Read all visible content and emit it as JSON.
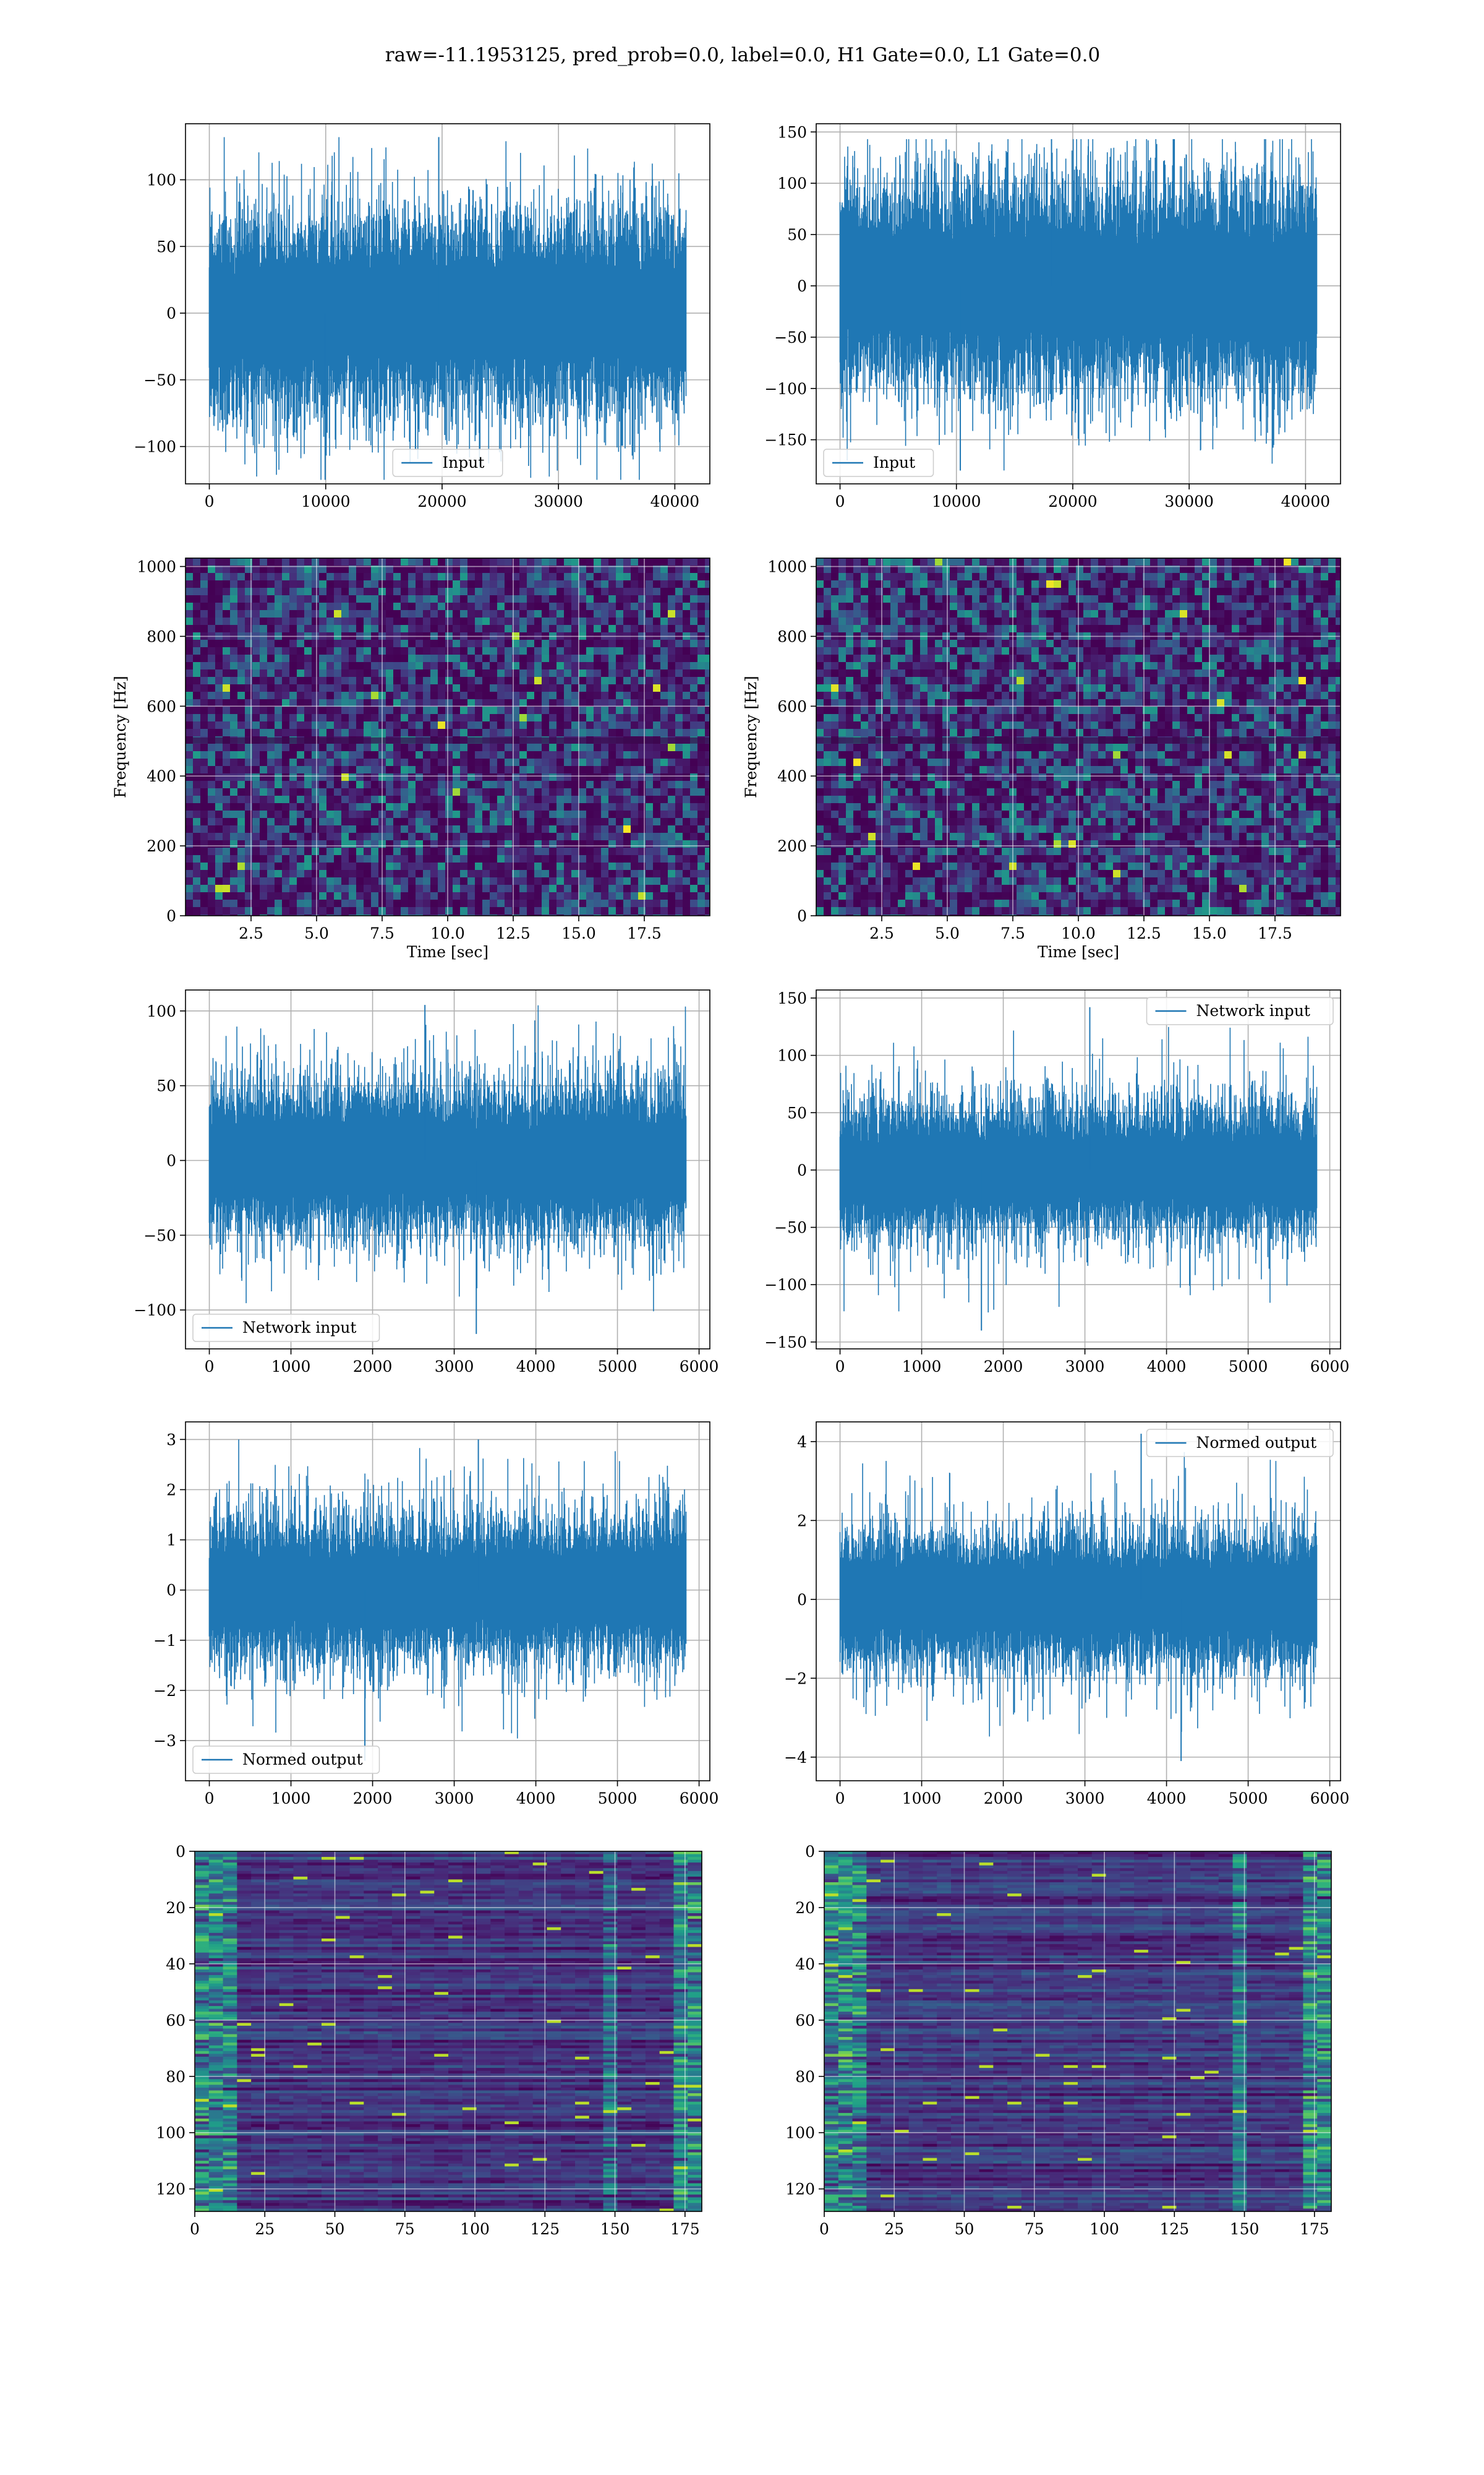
{
  "figure": {
    "title": "raw=-11.1953125, pred_prob=0.0, label=0.0, H1 Gate=0.0, L1 Gate=0.0"
  },
  "chart_data": [
    {
      "id": "h1-input",
      "type": "line",
      "legend": "lower center",
      "series": [
        {
          "name": "Input",
          "color": "#1f77b4"
        }
      ],
      "x_range": [
        0,
        40960
      ],
      "xlim": [
        -2048,
        43008
      ],
      "ylim": [
        -128,
        142
      ],
      "xticks": [
        0,
        10000,
        20000,
        30000,
        40000
      ],
      "yticks": [
        -100,
        -50,
        0,
        50,
        100
      ],
      "envelope": {
        "core": 50,
        "peak_max": 132,
        "peak_min": -125
      },
      "grid": true
    },
    {
      "id": "l1-input",
      "type": "line",
      "legend": "lower left",
      "series": [
        {
          "name": "Input",
          "color": "#1f77b4"
        }
      ],
      "x_range": [
        0,
        40960
      ],
      "xlim": [
        -2048,
        43008
      ],
      "ylim": [
        -193,
        158
      ],
      "xticks": [
        0,
        10000,
        20000,
        30000,
        40000
      ],
      "yticks": [
        -150,
        -100,
        -50,
        0,
        50,
        100,
        150
      ],
      "envelope": {
        "core": 70,
        "peak_max": 143,
        "peak_min": -180
      },
      "grid": true
    },
    {
      "id": "h1-spectrogram",
      "type": "heatmap",
      "colormap": "viridis",
      "xlabel": "Time [sec]",
      "ylabel": "Frequency [Hz]",
      "xlim": [
        0,
        20
      ],
      "ylim": [
        0,
        1024
      ],
      "xticks": [
        2.5,
        5.0,
        7.5,
        10.0,
        12.5,
        15.0,
        17.5
      ],
      "yticks": [
        0,
        200,
        400,
        600,
        800,
        1000
      ],
      "grid": true
    },
    {
      "id": "l1-spectrogram",
      "type": "heatmap",
      "colormap": "viridis",
      "xlabel": "Time [sec]",
      "ylabel": "Frequency [Hz]",
      "xlim": [
        0,
        20
      ],
      "ylim": [
        0,
        1024
      ],
      "xticks": [
        2.5,
        5.0,
        7.5,
        10.0,
        12.5,
        15.0,
        17.5
      ],
      "yticks": [
        0,
        200,
        400,
        600,
        800,
        1000
      ],
      "grid": true
    },
    {
      "id": "h1-network-input",
      "type": "line",
      "legend": "lower left",
      "series": [
        {
          "name": "Network input",
          "color": "#1f77b4"
        }
      ],
      "x_range": [
        0,
        5840
      ],
      "xlim": [
        -292,
        6132
      ],
      "ylim": [
        -126,
        114
      ],
      "xticks": [
        0,
        1000,
        2000,
        3000,
        4000,
        5000,
        6000
      ],
      "yticks": [
        -100,
        -50,
        0,
        50,
        100
      ],
      "envelope": {
        "core": 35,
        "peak_max": 104,
        "peak_min": -116
      },
      "grid": true
    },
    {
      "id": "l1-network-input",
      "type": "line",
      "legend": "upper right",
      "series": [
        {
          "name": "Network input",
          "color": "#1f77b4"
        }
      ],
      "x_range": [
        0,
        5840
      ],
      "xlim": [
        -292,
        6132
      ],
      "ylim": [
        -156,
        157
      ],
      "xticks": [
        0,
        1000,
        2000,
        3000,
        4000,
        5000,
        6000
      ],
      "yticks": [
        -150,
        -100,
        -50,
        0,
        50,
        100,
        150
      ],
      "envelope": {
        "core": 40,
        "peak_max": 142,
        "peak_min": -140
      },
      "grid": true
    },
    {
      "id": "h1-normed-output",
      "type": "line",
      "legend": "lower left",
      "series": [
        {
          "name": "Normed output",
          "color": "#1f77b4"
        }
      ],
      "x_range": [
        0,
        5840
      ],
      "xlim": [
        -292,
        6132
      ],
      "ylim": [
        -3.8,
        3.35
      ],
      "xticks": [
        0,
        1000,
        2000,
        3000,
        4000,
        5000,
        6000
      ],
      "yticks": [
        -3,
        -2,
        -1,
        0,
        1,
        2,
        3
      ],
      "envelope": {
        "core": 1.0,
        "peak_max": 3.0,
        "peak_min": -3.4
      },
      "grid": true
    },
    {
      "id": "l1-normed-output",
      "type": "line",
      "legend": "upper right",
      "series": [
        {
          "name": "Normed output",
          "color": "#1f77b4"
        }
      ],
      "x_range": [
        0,
        5840
      ],
      "xlim": [
        -292,
        6132
      ],
      "ylim": [
        -4.6,
        4.5
      ],
      "xticks": [
        0,
        1000,
        2000,
        3000,
        4000,
        5000,
        6000
      ],
      "yticks": [
        -4,
        -2,
        0,
        2,
        4
      ],
      "envelope": {
        "core": 1.2,
        "peak_max": 4.2,
        "peak_min": -4.1
      },
      "grid": true
    },
    {
      "id": "h1-feature-map",
      "type": "heatmap",
      "colormap": "viridis",
      "rows": 128,
      "cols": 181,
      "xlim": [
        0,
        181
      ],
      "ylim": [
        128,
        0
      ],
      "xticks": [
        0,
        25,
        50,
        75,
        100,
        125,
        150,
        175
      ],
      "yticks": [
        0,
        20,
        40,
        60,
        80,
        100,
        120
      ],
      "grid": true
    },
    {
      "id": "l1-feature-map",
      "type": "heatmap",
      "colormap": "viridis",
      "rows": 128,
      "cols": 181,
      "xlim": [
        0,
        181
      ],
      "ylim": [
        128,
        0
      ],
      "xticks": [
        0,
        25,
        50,
        75,
        100,
        125,
        150,
        175
      ],
      "yticks": [
        0,
        20,
        40,
        60,
        80,
        100,
        120
      ],
      "grid": true
    }
  ]
}
